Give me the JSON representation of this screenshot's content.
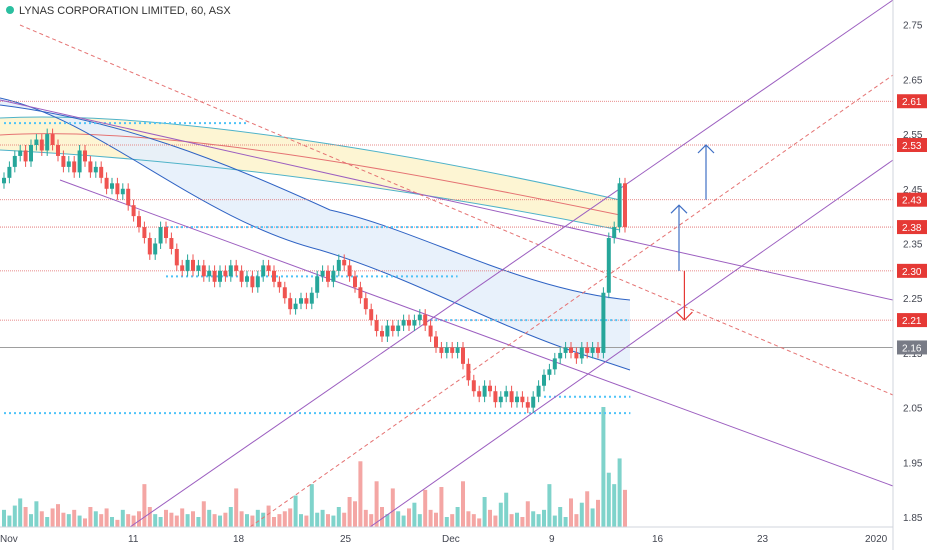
{
  "title": "LYNAS CORPORATION LIMITED, 60, ASX",
  "colors": {
    "up": "#26a69a",
    "down": "#ef5350",
    "vol_up": "#7fd3cb",
    "vol_down": "#f4a6a4",
    "level_line": "#e06666",
    "channel": "#9c5fc0",
    "arrow_up": "#3f6fc4",
    "arrow_down": "#e53935",
    "label_red": "#e53935",
    "label_gray": "#787b86"
  },
  "chart_data": {
    "type": "candlestick",
    "title": "LYNAS CORPORATION LIMITED, 60, ASX",
    "ylim": [
      1.83,
      2.79
    ],
    "price_ticks": [
      "1.85",
      "1.95",
      "2.05",
      "2.15",
      "2.25",
      "2.35",
      "2.45",
      "2.55",
      "2.65",
      "2.75"
    ],
    "x_ticks": [
      "Nov",
      "11",
      "18",
      "25",
      "Dec",
      "9",
      "16",
      "23",
      "2020"
    ],
    "price_labels": [
      {
        "value": 2.61,
        "text": "2.61",
        "color": "red"
      },
      {
        "value": 2.53,
        "text": "2.53",
        "color": "red"
      },
      {
        "value": 2.43,
        "text": "2.43",
        "color": "red"
      },
      {
        "value": 2.38,
        "text": "2.38",
        "color": "red"
      },
      {
        "value": 2.3,
        "text": "2.30",
        "color": "red"
      },
      {
        "value": 2.21,
        "text": "2.21",
        "color": "red"
      },
      {
        "value": 2.16,
        "text": "2.16",
        "color": "gray"
      }
    ],
    "closes": [
      2.47,
      2.49,
      2.51,
      2.52,
      2.5,
      2.53,
      2.54,
      2.52,
      2.55,
      2.53,
      2.51,
      2.49,
      2.5,
      2.48,
      2.52,
      2.5,
      2.48,
      2.49,
      2.47,
      2.45,
      2.46,
      2.44,
      2.45,
      2.42,
      2.4,
      2.38,
      2.36,
      2.33,
      2.35,
      2.38,
      2.36,
      2.34,
      2.31,
      2.3,
      2.32,
      2.3,
      2.31,
      2.29,
      2.3,
      2.28,
      2.3,
      2.29,
      2.31,
      2.3,
      2.28,
      2.29,
      2.27,
      2.29,
      2.31,
      2.3,
      2.28,
      2.27,
      2.25,
      2.23,
      2.24,
      2.25,
      2.24,
      2.26,
      2.29,
      2.3,
      2.28,
      2.3,
      2.32,
      2.31,
      2.29,
      2.27,
      2.25,
      2.23,
      2.21,
      2.19,
      2.18,
      2.2,
      2.19,
      2.2,
      2.21,
      2.2,
      2.21,
      2.22,
      2.2,
      2.18,
      2.16,
      2.15,
      2.16,
      2.15,
      2.16,
      2.13,
      2.1,
      2.08,
      2.07,
      2.09,
      2.08,
      2.06,
      2.07,
      2.08,
      2.06,
      2.07,
      2.06,
      2.05,
      2.07,
      2.09,
      2.11,
      2.12,
      2.14,
      2.15,
      2.16,
      2.15,
      2.14,
      2.16,
      2.15,
      2.16,
      2.15,
      2.26,
      2.36,
      2.38,
      2.46,
      2.38
    ],
    "volume": [
      12,
      8,
      15,
      20,
      14,
      9,
      18,
      11,
      7,
      13,
      16,
      10,
      9,
      12,
      8,
      6,
      14,
      11,
      9,
      13,
      7,
      5,
      12,
      9,
      8,
      11,
      30,
      14,
      9,
      7,
      12,
      10,
      8,
      13,
      9,
      11,
      7,
      18,
      12,
      9,
      8,
      10,
      14,
      27,
      11,
      9,
      8,
      12,
      10,
      15,
      7,
      9,
      11,
      13,
      22,
      9,
      8,
      30,
      10,
      12,
      9,
      8,
      14,
      10,
      21,
      18,
      46,
      12,
      9,
      32,
      14,
      9,
      27,
      11,
      8,
      13,
      17,
      9,
      26,
      12,
      10,
      28,
      7,
      9,
      14,
      32,
      11,
      9,
      6,
      21,
      12,
      8,
      17,
      24,
      9,
      10,
      7,
      18,
      11,
      9,
      12,
      30,
      8,
      14,
      7,
      20,
      9,
      17,
      25,
      13,
      19,
      84,
      38,
      30,
      48,
      26
    ],
    "levels": [
      2.61,
      2.53,
      2.43,
      2.38,
      2.3,
      2.21,
      2.16
    ],
    "dotted_levels": [
      {
        "value": 2.57,
        "from": 0,
        "to": 45
      },
      {
        "value": 2.38,
        "from": 30,
        "to": 88
      },
      {
        "value": 2.29,
        "from": 30,
        "to": 84
      },
      {
        "value": 2.21,
        "from": 78,
        "to": 116
      },
      {
        "value": 2.07,
        "from": 100,
        "to": 116
      },
      {
        "value": 2.04,
        "from": 0,
        "to": 116
      }
    ],
    "arrows": [
      {
        "x": 130,
        "from": 2.43,
        "to": 2.53,
        "direction": "up"
      },
      {
        "x": 125,
        "from": 2.3,
        "to": 2.42,
        "direction": "up"
      },
      {
        "x": 126,
        "from": 2.3,
        "to": 2.21,
        "direction": "down"
      }
    ]
  }
}
